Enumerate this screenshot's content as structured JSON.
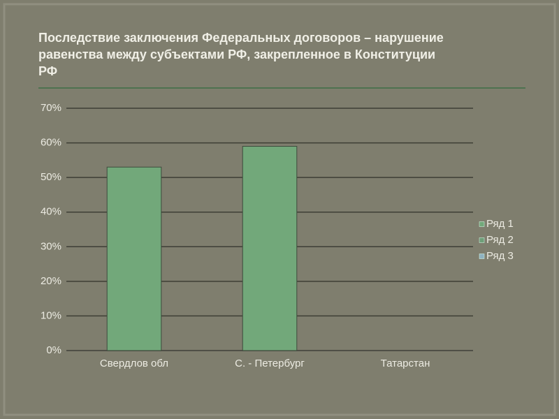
{
  "chart_data": {
    "type": "bar",
    "title": [
      "Последствие заключения  Федеральных договоров – нарушение",
      "равенства между субъектами РФ, закрепленное в Конституции",
      "РФ"
    ],
    "categories": [
      "Свердлов обл",
      "С. - Петербург",
      "Татарстан"
    ],
    "series": [
      {
        "name": "Ряд 1",
        "color": "#72a87a",
        "values": [
          53,
          59,
          0
        ]
      },
      {
        "name": "Ряд 2",
        "color": "#6e9e78",
        "values": [
          null,
          null,
          null
        ]
      },
      {
        "name": "Ряд 3",
        "color": "#8fb2c0",
        "values": [
          null,
          null,
          null
        ]
      }
    ],
    "ylim": [
      0,
      70
    ],
    "yticks": [
      {
        "value": 0,
        "label": "0%"
      },
      {
        "value": 10,
        "label": "10%"
      },
      {
        "value": 20,
        "label": "20%"
      },
      {
        "value": 30,
        "label": "30%"
      },
      {
        "value": 40,
        "label": "40%"
      },
      {
        "value": 50,
        "label": "50%"
      },
      {
        "value": 60,
        "label": "60%"
      },
      {
        "value": 70,
        "label": "70%"
      }
    ],
    "grid": true,
    "legend": "right"
  }
}
